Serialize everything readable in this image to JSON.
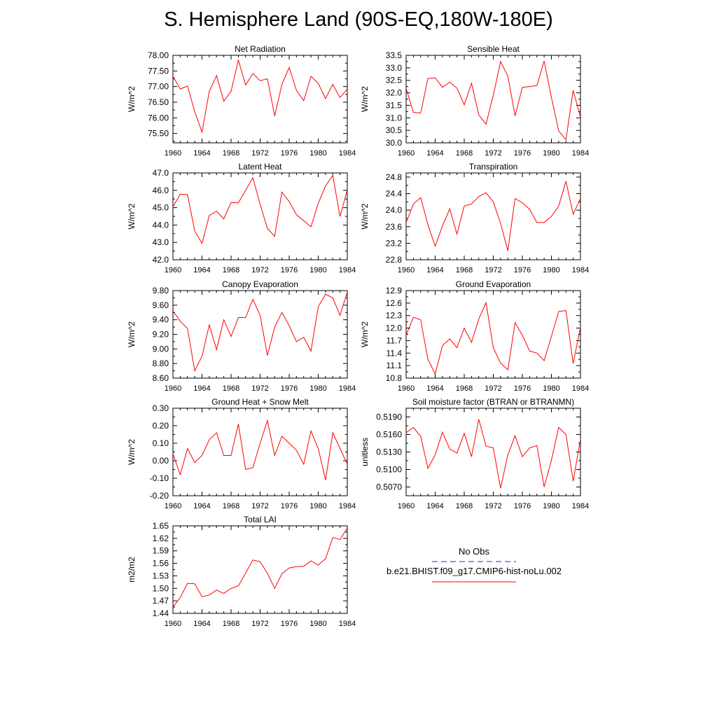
{
  "title": "S. Hemisphere Land (90S-EQ,180W-180E)",
  "colors": {
    "model_line": "#ff0000",
    "obs_line": "#2b2bb8",
    "axis": "#000000"
  },
  "legend": {
    "obs_label": "No Obs",
    "model_label": "b.e21.BHIST.f09_g17.CMIP6-hist-noLu.002"
  },
  "chart_data": [
    {
      "type": "line",
      "title": "Net Radiation",
      "ylabel": "W/m^2",
      "xlim": [
        1960,
        1984
      ],
      "ylim": [
        75.2,
        78.0
      ],
      "yticks": [
        "75.50",
        "76.00",
        "76.50",
        "77.00",
        "77.50",
        "78.00"
      ],
      "xticks": [
        "1960",
        "1964",
        "1968",
        "1972",
        "1976",
        "1980",
        "1984"
      ],
      "series": [
        {
          "x": [
            1960,
            1961,
            1962,
            1963,
            1964,
            1965,
            1966,
            1967,
            1968,
            1969,
            1970,
            1971,
            1972,
            1973,
            1974,
            1975,
            1976,
            1977,
            1978,
            1979,
            1980,
            1981,
            1982,
            1983,
            1984
          ],
          "values": [
            77.33,
            76.92,
            77.02,
            76.2,
            75.54,
            76.85,
            77.35,
            76.53,
            76.85,
            77.85,
            77.05,
            77.42,
            77.19,
            77.25,
            76.06,
            77.07,
            77.61,
            76.88,
            76.55,
            77.33,
            77.1,
            76.62,
            77.07,
            76.65,
            76.92
          ]
        }
      ]
    },
    {
      "type": "line",
      "title": "Sensible Heat",
      "ylabel": "W/m^2",
      "xlim": [
        1960,
        1984
      ],
      "ylim": [
        30.0,
        33.5
      ],
      "yticks": [
        "30.0",
        "30.5",
        "31.0",
        "31.5",
        "32.0",
        "32.5",
        "33.0",
        "33.5"
      ],
      "xticks": [
        "1960",
        "1964",
        "1968",
        "1972",
        "1976",
        "1980",
        "1984"
      ],
      "series": [
        {
          "x": [
            1960,
            1961,
            1962,
            1963,
            1964,
            1965,
            1966,
            1967,
            1968,
            1969,
            1970,
            1971,
            1972,
            1973,
            1974,
            1975,
            1976,
            1977,
            1978,
            1979,
            1980,
            1981,
            1982,
            1983,
            1984
          ],
          "values": [
            32.18,
            31.22,
            31.19,
            32.57,
            32.6,
            32.22,
            32.43,
            32.19,
            31.52,
            32.38,
            31.12,
            30.75,
            31.9,
            33.25,
            32.67,
            31.08,
            32.22,
            32.25,
            32.29,
            33.27,
            31.82,
            30.48,
            30.12,
            32.1,
            31.03
          ]
        }
      ]
    },
    {
      "type": "line",
      "title": "Latent Heat",
      "ylabel": "W/m^2",
      "xlim": [
        1960,
        1984
      ],
      "ylim": [
        42.0,
        47.0
      ],
      "yticks": [
        "42.0",
        "43.0",
        "44.0",
        "45.0",
        "46.0",
        "47.0"
      ],
      "xticks": [
        "1960",
        "1964",
        "1968",
        "1972",
        "1976",
        "1980",
        "1984"
      ],
      "series": [
        {
          "x": [
            1960,
            1961,
            1962,
            1963,
            1964,
            1965,
            1966,
            1967,
            1968,
            1969,
            1970,
            1971,
            1972,
            1973,
            1974,
            1975,
            1976,
            1977,
            1978,
            1979,
            1980,
            1981,
            1982,
            1983,
            1984
          ],
          "values": [
            45.05,
            45.78,
            45.75,
            43.65,
            42.95,
            44.55,
            44.8,
            44.35,
            45.3,
            45.28,
            46.0,
            46.72,
            45.2,
            43.8,
            43.35,
            45.9,
            45.35,
            44.6,
            44.25,
            43.9,
            45.25,
            46.25,
            46.85,
            44.5,
            46.02
          ]
        }
      ]
    },
    {
      "type": "line",
      "title": "Transpiration",
      "ylabel": "W/m^2",
      "xlim": [
        1960,
        1984
      ],
      "ylim": [
        22.8,
        24.9
      ],
      "yticks": [
        "22.8",
        "23.2",
        "23.6",
        "24.0",
        "24.4",
        "24.8"
      ],
      "xticks": [
        "1960",
        "1964",
        "1968",
        "1972",
        "1976",
        "1980",
        "1984"
      ],
      "series": [
        {
          "x": [
            1960,
            1961,
            1962,
            1963,
            1964,
            1965,
            1966,
            1967,
            1968,
            1969,
            1970,
            1971,
            1972,
            1973,
            1974,
            1975,
            1976,
            1977,
            1978,
            1979,
            1980,
            1981,
            1982,
            1983,
            1984
          ],
          "values": [
            23.7,
            24.15,
            24.3,
            23.65,
            23.13,
            23.62,
            24.03,
            23.42,
            24.1,
            24.15,
            24.33,
            24.42,
            24.2,
            23.68,
            23.02,
            24.28,
            24.18,
            24.02,
            23.7,
            23.7,
            23.85,
            24.1,
            24.7,
            23.9,
            24.28
          ]
        }
      ]
    },
    {
      "type": "line",
      "title": "Canopy Evaporation",
      "ylabel": "W/m^2",
      "xlim": [
        1960,
        1984
      ],
      "ylim": [
        8.6,
        9.8
      ],
      "yticks": [
        "8.60",
        "8.80",
        "9.00",
        "9.20",
        "9.40",
        "9.60",
        "9.80"
      ],
      "xticks": [
        "1960",
        "1964",
        "1968",
        "1972",
        "1976",
        "1980",
        "1984"
      ],
      "series": [
        {
          "x": [
            1960,
            1961,
            1962,
            1963,
            1964,
            1965,
            1966,
            1967,
            1968,
            1969,
            1970,
            1971,
            1972,
            1973,
            1974,
            1975,
            1976,
            1977,
            1978,
            1979,
            1980,
            1981,
            1982,
            1983,
            1984
          ],
          "values": [
            9.52,
            9.38,
            9.28,
            8.7,
            8.9,
            9.33,
            8.99,
            9.4,
            9.17,
            9.43,
            9.43,
            9.68,
            9.46,
            8.91,
            9.3,
            9.5,
            9.32,
            9.1,
            9.16,
            8.97,
            9.58,
            9.75,
            9.7,
            9.46,
            9.78
          ]
        }
      ]
    },
    {
      "type": "line",
      "title": "Ground Evaporation",
      "ylabel": "W/m^2",
      "xlim": [
        1960,
        1984
      ],
      "ylim": [
        10.8,
        12.9
      ],
      "yticks": [
        "10.8",
        "11.1",
        "11.4",
        "11.7",
        "12.0",
        "12.3",
        "12.6",
        "12.9"
      ],
      "xticks": [
        "1960",
        "1964",
        "1968",
        "1972",
        "1976",
        "1980",
        "1984"
      ],
      "series": [
        {
          "x": [
            1960,
            1961,
            1962,
            1963,
            1964,
            1965,
            1966,
            1967,
            1968,
            1969,
            1970,
            1971,
            1972,
            1973,
            1974,
            1975,
            1976,
            1977,
            1978,
            1979,
            1980,
            1981,
            1982,
            1983,
            1984
          ],
          "values": [
            11.83,
            12.26,
            12.2,
            11.25,
            10.9,
            11.58,
            11.74,
            11.53,
            12.0,
            11.66,
            12.22,
            12.61,
            11.53,
            11.16,
            11.0,
            12.13,
            11.83,
            11.45,
            11.4,
            11.22,
            11.8,
            12.4,
            12.42,
            11.15,
            12.02
          ]
        }
      ]
    },
    {
      "type": "line",
      "title": "Ground Heat + Snow Melt",
      "ylabel": "W/m^2",
      "xlim": [
        1960,
        1984
      ],
      "ylim": [
        -0.2,
        0.3
      ],
      "yticks": [
        "-0.20",
        "-0.10",
        "0.00",
        "0.10",
        "0.20",
        "0.30"
      ],
      "xticks": [
        "1960",
        "1964",
        "1968",
        "1972",
        "1976",
        "1980",
        "1984"
      ],
      "series": [
        {
          "x": [
            1960,
            1961,
            1962,
            1963,
            1964,
            1965,
            1966,
            1967,
            1968,
            1969,
            1970,
            1971,
            1972,
            1973,
            1974,
            1975,
            1976,
            1977,
            1978,
            1979,
            1980,
            1981,
            1982,
            1983,
            1984
          ],
          "values": [
            0.04,
            -0.08,
            0.07,
            -0.01,
            0.03,
            0.12,
            0.16,
            0.03,
            0.03,
            0.21,
            -0.05,
            -0.04,
            0.1,
            0.23,
            0.03,
            0.14,
            0.1,
            0.06,
            -0.02,
            0.17,
            0.07,
            -0.11,
            0.16,
            0.07,
            -0.02
          ]
        }
      ]
    },
    {
      "type": "line",
      "title": "Soil moisture factor (BTRAN or BTRANMN)",
      "ylabel": "unitless",
      "xlim": [
        1960,
        1984
      ],
      "ylim": [
        0.5055,
        0.5205
      ],
      "yticks": [
        "0.5070",
        "0.5100",
        "0.5130",
        "0.5160",
        "0.5190"
      ],
      "xticks": [
        "1960",
        "1964",
        "1968",
        "1972",
        "1976",
        "1980",
        "1984"
      ],
      "series": [
        {
          "x": [
            1960,
            1961,
            1962,
            1963,
            1964,
            1965,
            1966,
            1967,
            1968,
            1969,
            1970,
            1971,
            1972,
            1973,
            1974,
            1975,
            1976,
            1977,
            1978,
            1979,
            1980,
            1981,
            1982,
            1983,
            1984
          ],
          "values": [
            0.5163,
            0.5172,
            0.5157,
            0.5102,
            0.5125,
            0.5164,
            0.5135,
            0.5128,
            0.5162,
            0.5122,
            0.5186,
            0.514,
            0.5137,
            0.5068,
            0.5125,
            0.5158,
            0.5122,
            0.5137,
            0.5141,
            0.507,
            0.5116,
            0.5172,
            0.516,
            0.508,
            0.5152
          ]
        }
      ]
    },
    {
      "type": "line",
      "title": "Total LAI",
      "ylabel": "m2/m2",
      "xlim": [
        1960,
        1984
      ],
      "ylim": [
        1.44,
        1.65
      ],
      "yticks": [
        "1.44",
        "1.47",
        "1.50",
        "1.53",
        "1.56",
        "1.59",
        "1.62",
        "1.65"
      ],
      "xticks": [
        "1960",
        "1964",
        "1968",
        "1972",
        "1976",
        "1980",
        "1984"
      ],
      "series": [
        {
          "x": [
            1960,
            1961,
            1962,
            1963,
            1964,
            1965,
            1966,
            1967,
            1968,
            1969,
            1970,
            1971,
            1972,
            1973,
            1974,
            1975,
            1976,
            1977,
            1978,
            1979,
            1980,
            1981,
            1982,
            1983,
            1984
          ],
          "values": [
            1.455,
            1.478,
            1.512,
            1.511,
            1.48,
            1.484,
            1.496,
            1.488,
            1.5,
            1.506,
            1.537,
            1.568,
            1.564,
            1.536,
            1.5,
            1.535,
            1.549,
            1.552,
            1.553,
            1.566,
            1.556,
            1.571,
            1.622,
            1.617,
            1.645
          ]
        }
      ]
    }
  ]
}
